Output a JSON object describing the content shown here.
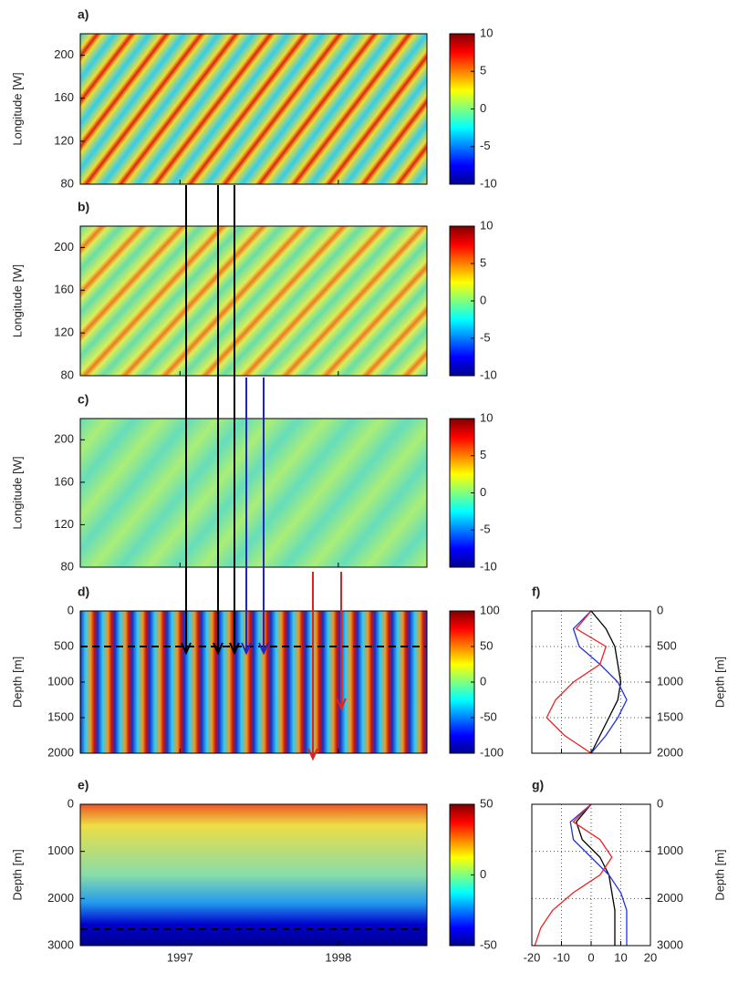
{
  "chart_data": [
    {
      "type": "heatmap",
      "label": "a)",
      "ylabel": "Longitude [W]",
      "xlim": [
        1996.37,
        1998.56
      ],
      "xticks": [
        1997,
        1998
      ],
      "ylim": [
        80,
        220
      ],
      "yticks": [
        80,
        120,
        160,
        200
      ],
      "clim": [
        -10,
        10
      ],
      "cticks": [
        -10,
        -5,
        0,
        5,
        10
      ]
    },
    {
      "type": "heatmap",
      "label": "b)",
      "ylabel": "Longitude [W]",
      "xlim": [
        1996.37,
        1998.56
      ],
      "xticks": [
        1997,
        1998
      ],
      "ylim": [
        80,
        220
      ],
      "yticks": [
        80,
        120,
        160,
        200
      ],
      "clim": [
        -10,
        10
      ],
      "cticks": [
        -10,
        -5,
        0,
        5,
        10
      ]
    },
    {
      "type": "heatmap",
      "label": "c)",
      "ylabel": "Longitude [W]",
      "xlim": [
        1996.37,
        1998.56
      ],
      "xticks": [
        1997,
        1998
      ],
      "ylim": [
        80,
        220
      ],
      "yticks": [
        80,
        120,
        160,
        200
      ],
      "clim": [
        -10,
        10
      ],
      "cticks": [
        -10,
        -5,
        0,
        5,
        10
      ]
    },
    {
      "type": "heatmap",
      "label": "d)",
      "ylabel": "Depth [m]",
      "y_reversed": true,
      "xlim": [
        1996.37,
        1998.56
      ],
      "xticks": [
        1997,
        1998
      ],
      "ylim": [
        0,
        2000
      ],
      "yticks": [
        0,
        500,
        1000,
        1500,
        2000
      ],
      "clim": [
        -100,
        100
      ],
      "cticks": [
        -100,
        -50,
        0,
        50,
        100
      ]
    },
    {
      "type": "heatmap",
      "label": "e)",
      "ylabel": "Depth [m]",
      "y_reversed": true,
      "xlim": [
        1996.37,
        1998.56
      ],
      "xticks": [
        1997,
        1998
      ],
      "ylim": [
        0,
        3000
      ],
      "yticks": [
        0,
        1000,
        2000,
        3000
      ],
      "clim": [
        -50,
        50
      ],
      "cticks": [
        -50,
        0,
        50
      ]
    },
    {
      "type": "profile",
      "label": "f)",
      "ylabel": "Depth [m]",
      "y_reversed": true,
      "grid": true,
      "xlim": [
        -20,
        20
      ],
      "xticks": [
        -20,
        -10,
        0,
        10,
        20
      ],
      "ylim": [
        0,
        2000
      ],
      "yticks": [
        0,
        500,
        1000,
        1500,
        2000
      ],
      "depth": [
        0,
        250,
        500,
        750,
        1000,
        1250,
        1500,
        1750,
        2000
      ],
      "series": [
        {
          "color": "#000000",
          "values": [
            0,
            5,
            8,
            9,
            10,
            9,
            6,
            3,
            0
          ]
        },
        {
          "color": "#2233dd",
          "values": [
            0,
            -6,
            -4,
            3,
            9,
            12,
            9,
            5,
            0
          ]
        },
        {
          "color": "#ee2222",
          "values": [
            0,
            -5,
            5,
            3,
            -6,
            -12,
            -15,
            -9,
            0
          ]
        }
      ]
    },
    {
      "type": "profile",
      "label": "g)",
      "ylabel": "Depth [m]",
      "y_reversed": true,
      "grid": true,
      "xlim": [
        -20,
        20
      ],
      "xticks": [
        -20,
        -10,
        0,
        10,
        20
      ],
      "ylim": [
        0,
        3000
      ],
      "yticks": [
        0,
        1000,
        2000,
        3000
      ],
      "depth": [
        0,
        375,
        750,
        1125,
        1500,
        1875,
        2250,
        2625,
        3000
      ],
      "series": [
        {
          "color": "#000000",
          "values": [
            0,
            -5,
            -3,
            3,
            6,
            7,
            8,
            8,
            8
          ]
        },
        {
          "color": "#2233dd",
          "values": [
            0,
            -7,
            -6,
            0,
            6,
            10,
            12,
            12,
            12
          ]
        },
        {
          "color": "#ee2222",
          "values": [
            0,
            -6,
            3,
            7,
            3,
            -6,
            -13,
            -17,
            -19
          ]
        }
      ]
    }
  ]
}
